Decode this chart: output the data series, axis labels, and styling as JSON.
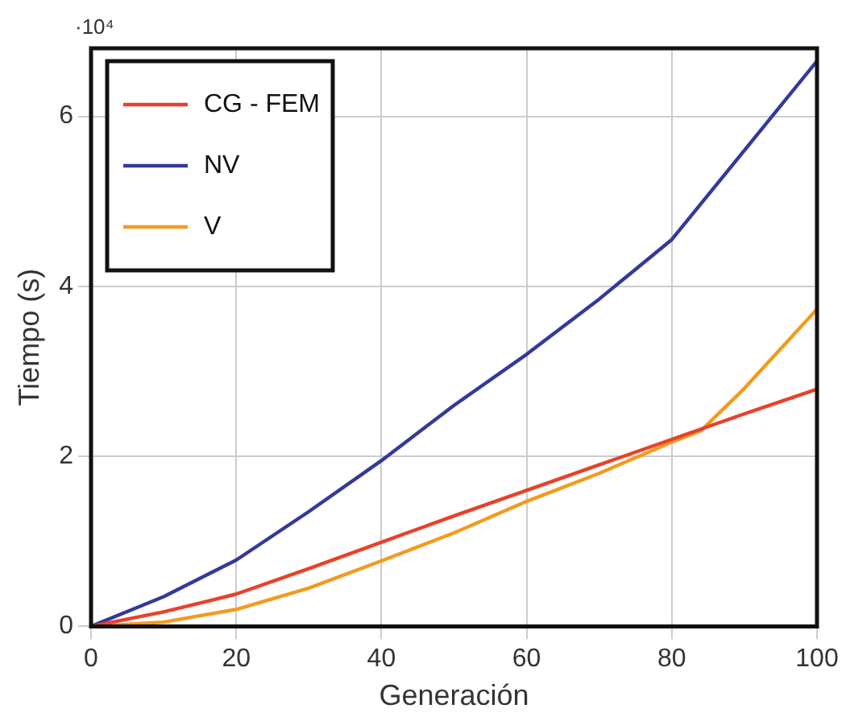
{
  "chart_data": {
    "type": "line",
    "xlabel": "Generación",
    "ylabel": "Tiempo (s)",
    "annotations": [
      "·10⁴"
    ],
    "xlim": [
      0,
      100
    ],
    "xticks": [
      0,
      20,
      40,
      60,
      80,
      100
    ],
    "ylim": [
      0,
      6.8
    ],
    "yticks": [
      0,
      2,
      4,
      6
    ],
    "grid": true,
    "legend": "top left",
    "marker": "none",
    "line_style": "solid",
    "series": [
      {
        "name": "CG - FEM",
        "color": "#e8412a",
        "x": [
          0,
          10,
          20,
          30,
          40,
          50,
          60,
          70,
          80,
          90,
          100
        ],
        "values": [
          0,
          0.17,
          0.38,
          0.68,
          0.99,
          1.3,
          1.6,
          1.9,
          2.2,
          2.5,
          2.79
        ]
      },
      {
        "name": "NV",
        "color": "#34399a",
        "x": [
          0,
          10,
          20,
          30,
          40,
          50,
          60,
          70,
          75,
          80,
          90,
          100
        ],
        "values": [
          0,
          0.35,
          0.78,
          1.35,
          1.95,
          2.6,
          3.2,
          3.85,
          4.2,
          4.55,
          5.6,
          6.65
        ]
      },
      {
        "name": "V",
        "color": "#f39a1e",
        "x": [
          0,
          10,
          20,
          30,
          40,
          50,
          60,
          70,
          80,
          84,
          90,
          100
        ],
        "values": [
          0,
          0.05,
          0.2,
          0.45,
          0.77,
          1.1,
          1.47,
          1.8,
          2.17,
          2.3,
          2.8,
          3.73
        ]
      }
    ]
  }
}
